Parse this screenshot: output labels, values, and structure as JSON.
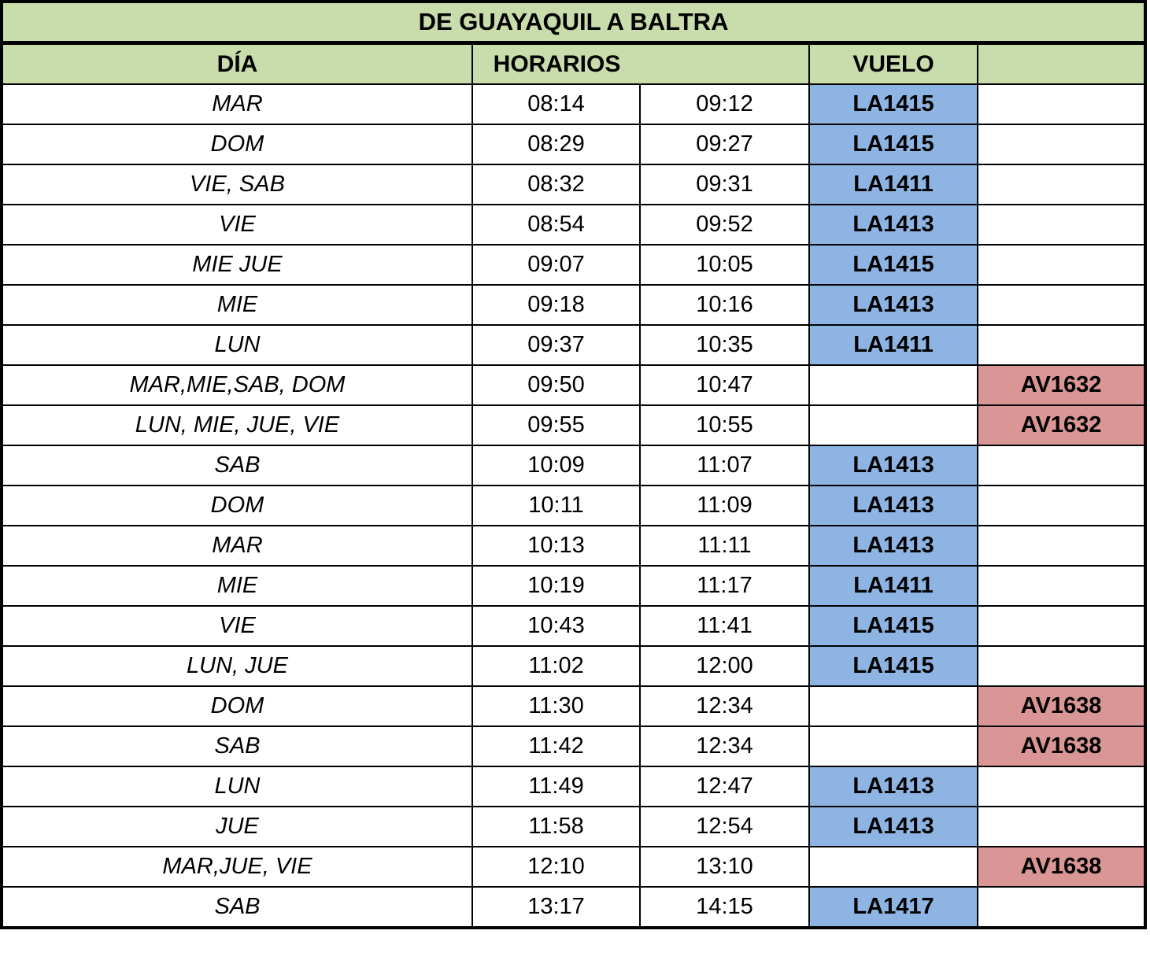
{
  "table": {
    "title": "DE GUAYAQUIL A BALTRA",
    "headers": {
      "day": "DÍA",
      "schedule": "HORARIOS",
      "flight": "VUELO",
      "extra": ""
    },
    "colors": {
      "header_green": "#c9dcab",
      "la_flight_blue": "#8db4e2",
      "av_flight_red": "#d99694",
      "border_black": "#000000"
    },
    "rows": [
      {
        "days": "MAR",
        "dep": "08:14",
        "arr": "09:12",
        "la": "LA1415",
        "av": ""
      },
      {
        "days": "DOM",
        "dep": "08:29",
        "arr": "09:27",
        "la": "LA1415",
        "av": ""
      },
      {
        "days": "VIE, SAB",
        "dep": "08:32",
        "arr": "09:31",
        "la": "LA1411",
        "av": ""
      },
      {
        "days": "VIE",
        "dep": "08:54",
        "arr": "09:52",
        "la": "LA1413",
        "av": ""
      },
      {
        "days": "MIE JUE",
        "dep": "09:07",
        "arr": "10:05",
        "la": "LA1415",
        "av": ""
      },
      {
        "days": "MIE",
        "dep": "09:18",
        "arr": "10:16",
        "la": "LA1413",
        "av": ""
      },
      {
        "days": "LUN",
        "dep": "09:37",
        "arr": "10:35",
        "la": "LA1411",
        "av": ""
      },
      {
        "days": "MAR,MIE,SAB, DOM",
        "dep": "09:50",
        "arr": "10:47",
        "la": "",
        "av": "AV1632"
      },
      {
        "days": "LUN, MIE, JUE, VIE",
        "dep": "09:55",
        "arr": "10:55",
        "la": "",
        "av": "AV1632"
      },
      {
        "days": "SAB",
        "dep": "10:09",
        "arr": "11:07",
        "la": "LA1413",
        "av": ""
      },
      {
        "days": "DOM",
        "dep": "10:11",
        "arr": "11:09",
        "la": "LA1413",
        "av": ""
      },
      {
        "days": "MAR",
        "dep": "10:13",
        "arr": "11:11",
        "la": "LA1413",
        "av": ""
      },
      {
        "days": "MIE",
        "dep": "10:19",
        "arr": "11:17",
        "la": "LA1411",
        "av": ""
      },
      {
        "days": "VIE",
        "dep": "10:43",
        "arr": "11:41",
        "la": "LA1415",
        "av": ""
      },
      {
        "days": "LUN, JUE",
        "dep": "11:02",
        "arr": "12:00",
        "la": "LA1415",
        "av": ""
      },
      {
        "days": "DOM",
        "dep": "11:30",
        "arr": "12:34",
        "la": "",
        "av": "AV1638"
      },
      {
        "days": "SAB",
        "dep": "11:42",
        "arr": "12:34",
        "la": "",
        "av": "AV1638"
      },
      {
        "days": "LUN",
        "dep": "11:49",
        "arr": "12:47",
        "la": "LA1413",
        "av": ""
      },
      {
        "days": "JUE",
        "dep": "11:58",
        "arr": "12:54",
        "la": "LA1413",
        "av": ""
      },
      {
        "days": "MAR,JUE, VIE",
        "dep": "12:10",
        "arr": "13:10",
        "la": "",
        "av": "AV1638"
      },
      {
        "days": "SAB",
        "dep": "13:17",
        "arr": "14:15",
        "la": "LA1417",
        "av": ""
      }
    ]
  }
}
